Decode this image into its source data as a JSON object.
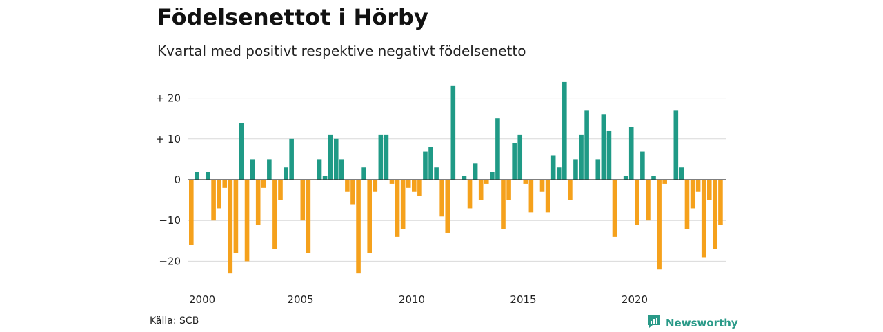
{
  "header": {
    "title": "Födelsenettot i Hörby",
    "subtitle": "Kvartal med positivt respektive negativt födelsenetto"
  },
  "footer": {
    "source": "Källa: SCB",
    "brand": "Newsworthy",
    "brand_icon": "newsworthy-logo-icon"
  },
  "colors": {
    "positive": "#1f9a86",
    "negative": "#f5a11c",
    "grid": "#d9d9d9",
    "zero_line": "#333333"
  },
  "chart_data": {
    "type": "bar",
    "title": "Födelsenettot i Hörby",
    "subtitle": "Kvartal med positivt respektive negativt födelsenetto",
    "xlabel": "",
    "ylabel": "",
    "x_start": "2000 Q1",
    "x_ticks": [
      "2000",
      "2005",
      "2010",
      "2015",
      "2020"
    ],
    "y_ticks": [
      {
        "value": 20,
        "label": "+ 20"
      },
      {
        "value": 10,
        "label": "+ 10"
      },
      {
        "value": 0,
        "label": "0"
      },
      {
        "value": -10,
        "label": "−10"
      },
      {
        "value": -20,
        "label": "−20"
      }
    ],
    "ylim": [
      -23,
      24
    ],
    "grid": true,
    "values": [
      -16,
      2,
      0,
      2,
      -10,
      -7,
      -2,
      -23,
      -18,
      14,
      -20,
      5,
      -11,
      -2,
      5,
      -17,
      -5,
      3,
      10,
      0,
      -10,
      -18,
      0,
      5,
      1,
      11,
      10,
      5,
      -3,
      -6,
      -23,
      3,
      -18,
      -3,
      11,
      11,
      -1,
      -14,
      -12,
      -2,
      -3,
      -4,
      7,
      8,
      3,
      -9,
      -13,
      23,
      0,
      1,
      -7,
      4,
      -5,
      -1,
      2,
      15,
      -12,
      -5,
      9,
      11,
      -1,
      -8,
      0,
      -3,
      -8,
      6,
      3,
      24,
      -5,
      5,
      11,
      17,
      0,
      5,
      16,
      12,
      -14,
      0,
      1,
      13,
      -11,
      7,
      -10,
      1,
      -22,
      -1,
      0,
      17,
      3,
      -12,
      -7,
      -3,
      -19,
      -5,
      -17,
      -11
    ]
  }
}
